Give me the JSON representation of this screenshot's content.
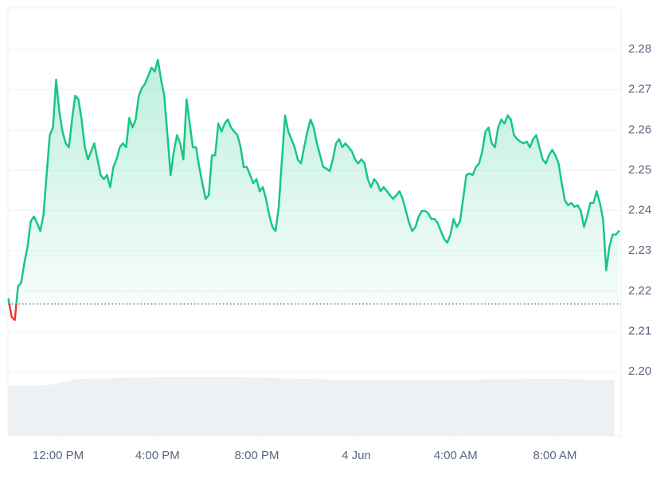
{
  "chart_data": {
    "type": "line",
    "x": [
      10,
      10.128,
      10.256,
      10.384,
      10.512,
      10.64,
      10.768,
      10.896,
      11.024,
      11.152,
      11.28,
      11.408,
      11.536,
      11.664,
      11.792,
      11.92,
      12.048,
      12.176,
      12.304,
      12.432,
      12.56,
      12.688,
      12.816,
      12.944,
      13.072,
      13.2,
      13.328,
      13.456,
      13.584,
      13.712,
      13.84,
      13.968,
      14.096,
      14.224,
      14.352,
      14.48,
      14.608,
      14.736,
      14.864,
      14.992,
      15.12,
      15.248,
      15.376,
      15.504,
      15.632,
      15.76,
      15.888,
      16.016,
      16.144,
      16.272,
      16.4,
      16.528,
      16.656,
      16.784,
      16.912,
      17.04,
      17.168,
      17.296,
      17.424,
      17.552,
      17.68,
      17.808,
      17.936,
      18.064,
      18.192,
      18.32,
      18.448,
      18.576,
      18.704,
      18.832,
      18.96,
      19.088,
      19.216,
      19.344,
      19.472,
      19.6,
      19.728,
      19.856,
      19.984,
      20.112,
      20.24,
      20.368,
      20.496,
      20.624,
      20.752,
      20.88,
      21.008,
      21.136,
      21.264,
      21.392,
      21.52,
      21.648,
      21.776,
      21.904,
      22.032,
      22.16,
      22.288,
      22.416,
      22.544,
      22.672,
      22.8,
      22.928,
      23.056,
      23.184,
      23.312,
      23.44,
      23.568,
      23.696,
      23.824,
      23.952,
      24.08,
      24.208,
      24.336,
      24.464,
      24.592,
      24.72,
      24.848,
      24.976,
      25.104,
      25.232,
      25.36,
      25.488,
      25.616,
      25.744,
      25.872,
      26,
      26.128,
      26.256,
      26.384,
      26.512,
      26.64,
      26.768,
      26.896,
      27.024,
      27.152,
      27.28,
      27.408,
      27.536,
      27.664,
      27.792,
      27.92,
      28.048,
      28.176,
      28.304,
      28.432,
      28.56,
      28.688,
      28.816,
      28.944,
      29.072,
      29.2,
      29.328,
      29.456,
      29.584,
      29.712,
      29.84,
      29.968,
      30.096,
      30.224,
      30.352,
      30.48,
      30.608,
      30.736,
      30.864,
      30.992,
      31.12,
      31.248,
      31.376,
      31.504,
      31.632,
      31.76,
      31.888,
      32.016,
      32.144,
      32.272,
      32.4,
      32.528,
      32.656,
      32.784,
      32.912,
      33.04,
      33.168,
      33.296,
      33.424,
      33.552,
      33.68,
      33.808,
      33.936,
      34.064,
      34.192,
      34.32,
      34.448,
      34.576
    ],
    "values": [
      2.218,
      2.2136,
      2.2128,
      2.2211,
      2.2221,
      2.227,
      2.231,
      2.2373,
      2.2385,
      2.2369,
      2.2349,
      2.2389,
      2.2488,
      2.2587,
      2.2606,
      2.2725,
      2.2646,
      2.2596,
      2.2567,
      2.2557,
      2.2626,
      2.2685,
      2.2676,
      2.2626,
      2.2557,
      2.2527,
      2.2547,
      2.2567,
      2.2527,
      2.2488,
      2.2478,
      2.2488,
      2.2458,
      2.2508,
      2.2527,
      2.2557,
      2.2567,
      2.2557,
      2.263,
      2.2606,
      2.2626,
      2.2685,
      2.2705,
      2.2715,
      2.2735,
      2.2755,
      2.2745,
      2.2774,
      2.2725,
      2.2685,
      2.2587,
      2.2488,
      2.2547,
      2.2587,
      2.2567,
      2.2527,
      2.2676,
      2.2616,
      2.2557,
      2.2557,
      2.2508,
      2.2468,
      2.2429,
      2.2438,
      2.2537,
      2.2537,
      2.2616,
      2.2596,
      2.2616,
      2.2626,
      2.2606,
      2.2596,
      2.2587,
      2.2557,
      2.2508,
      2.2508,
      2.2488,
      2.2468,
      2.2478,
      2.2448,
      2.2458,
      2.2429,
      2.2389,
      2.2359,
      2.2349,
      2.2409,
      2.2527,
      2.2636,
      2.2596,
      2.2577,
      2.2557,
      2.2527,
      2.2517,
      2.2557,
      2.2596,
      2.2626,
      2.2606,
      2.2567,
      2.2537,
      2.2508,
      2.2504,
      2.2498,
      2.2527,
      2.2567,
      2.2577,
      2.2557,
      2.2567,
      2.2557,
      2.2547,
      2.2527,
      2.2517,
      2.2527,
      2.2517,
      2.2478,
      2.2458,
      2.2478,
      2.2468,
      2.2448,
      2.2458,
      2.2448,
      2.2438,
      2.2429,
      2.2438,
      2.2448,
      2.2429,
      2.2399,
      2.2369,
      2.2349,
      2.2359,
      2.2385,
      2.2399,
      2.2399,
      2.2393,
      2.2379,
      2.2379,
      2.2369,
      2.2349,
      2.233,
      2.232,
      2.234,
      2.2379,
      2.2359,
      2.2373,
      2.2429,
      2.2488,
      2.2492,
      2.2488,
      2.2508,
      2.2517,
      2.2547,
      2.2596,
      2.2606,
      2.2567,
      2.2557,
      2.2606,
      2.2626,
      2.2616,
      2.2636,
      2.2626,
      2.2587,
      2.2577,
      2.2571,
      2.2567,
      2.2571,
      2.2557,
      2.2577,
      2.2587,
      2.2557,
      2.2527,
      2.2517,
      2.2537,
      2.2551,
      2.2537,
      2.2517,
      2.2468,
      2.2425,
      2.2413,
      2.2419,
      2.2409,
      2.2413,
      2.2399,
      2.2359,
      2.2385,
      2.2419,
      2.2419,
      2.2448,
      2.2419,
      2.2379,
      2.2251,
      2.231,
      2.234,
      2.234,
      2.2349
    ],
    "baseline": 2.2168,
    "color_up": "#16c784",
    "color_down": "#ea3943",
    "xlim": [
      9.98,
      34.66
    ],
    "xticks": [
      {
        "value": 12,
        "label": "12:00 PM"
      },
      {
        "value": 16,
        "label": "4:00 PM"
      },
      {
        "value": 20,
        "label": "8:00 PM"
      },
      {
        "value": 24,
        "label": "4 Jun"
      },
      {
        "value": 28,
        "label": "4:00 AM"
      },
      {
        "value": 32,
        "label": "8:00 AM"
      }
    ],
    "ylim": [
      2.184,
      2.2903
    ],
    "yticks": [
      {
        "value": 2.2,
        "label": "2.20"
      },
      2.21,
      2.22,
      2.23,
      2.24,
      2.25,
      2.26,
      2.27,
      2.28
    ],
    "grid": true
  }
}
